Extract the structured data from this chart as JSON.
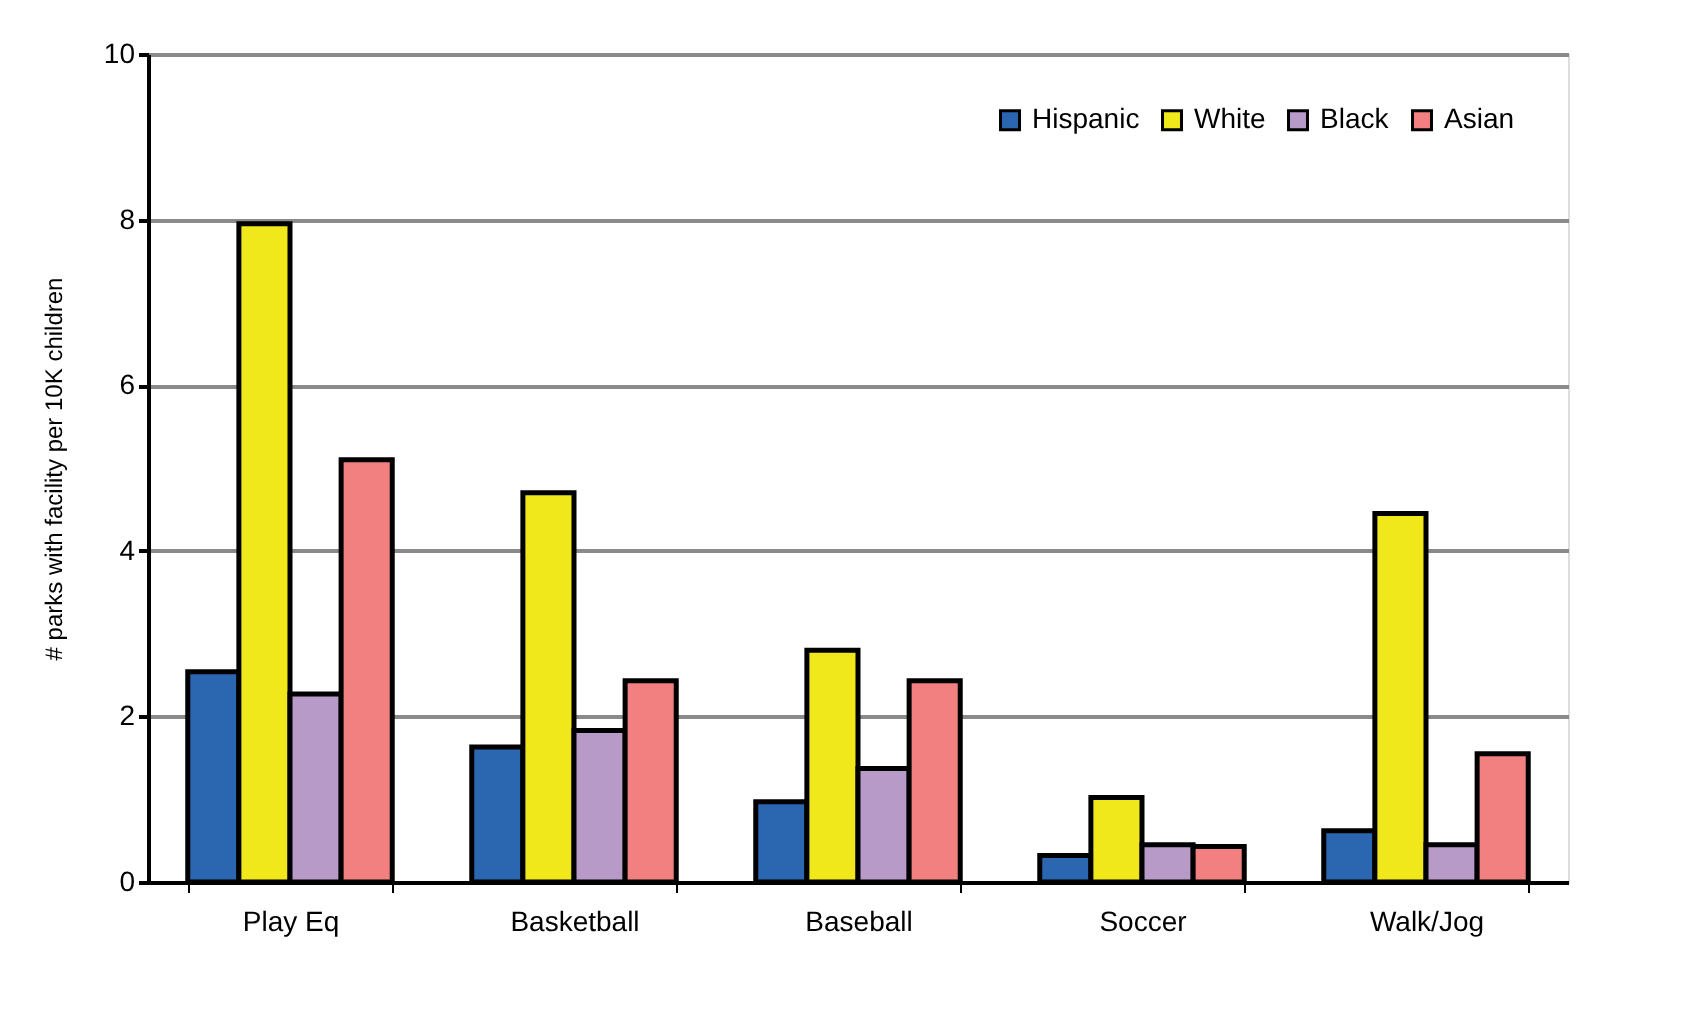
{
  "chart_data": {
    "type": "bar",
    "ylabel": "# parks with facility per 10K children",
    "categories": [
      "Play Eq",
      "Basketball",
      "Baseball",
      "Soccer",
      "Walk/Jog"
    ],
    "series": [
      {
        "name": "Hispanic",
        "color": "#2b66b0",
        "values": [
          2.54,
          1.63,
          0.97,
          0.32,
          0.62
        ]
      },
      {
        "name": "White",
        "color": "#f0e81a",
        "values": [
          7.95,
          4.7,
          2.8,
          1.02,
          4.45
        ]
      },
      {
        "name": "Black",
        "color": "#b89ac8",
        "values": [
          2.27,
          1.83,
          1.37,
          0.45,
          0.45
        ]
      },
      {
        "name": "Asian",
        "color": "#f28080",
        "values": [
          5.1,
          2.43,
          2.43,
          0.43,
          1.55
        ]
      }
    ],
    "ylim": [
      0,
      10
    ],
    "yticks": [
      0,
      2,
      4,
      6,
      8,
      10
    ],
    "grid": "y",
    "legend": "top right"
  }
}
